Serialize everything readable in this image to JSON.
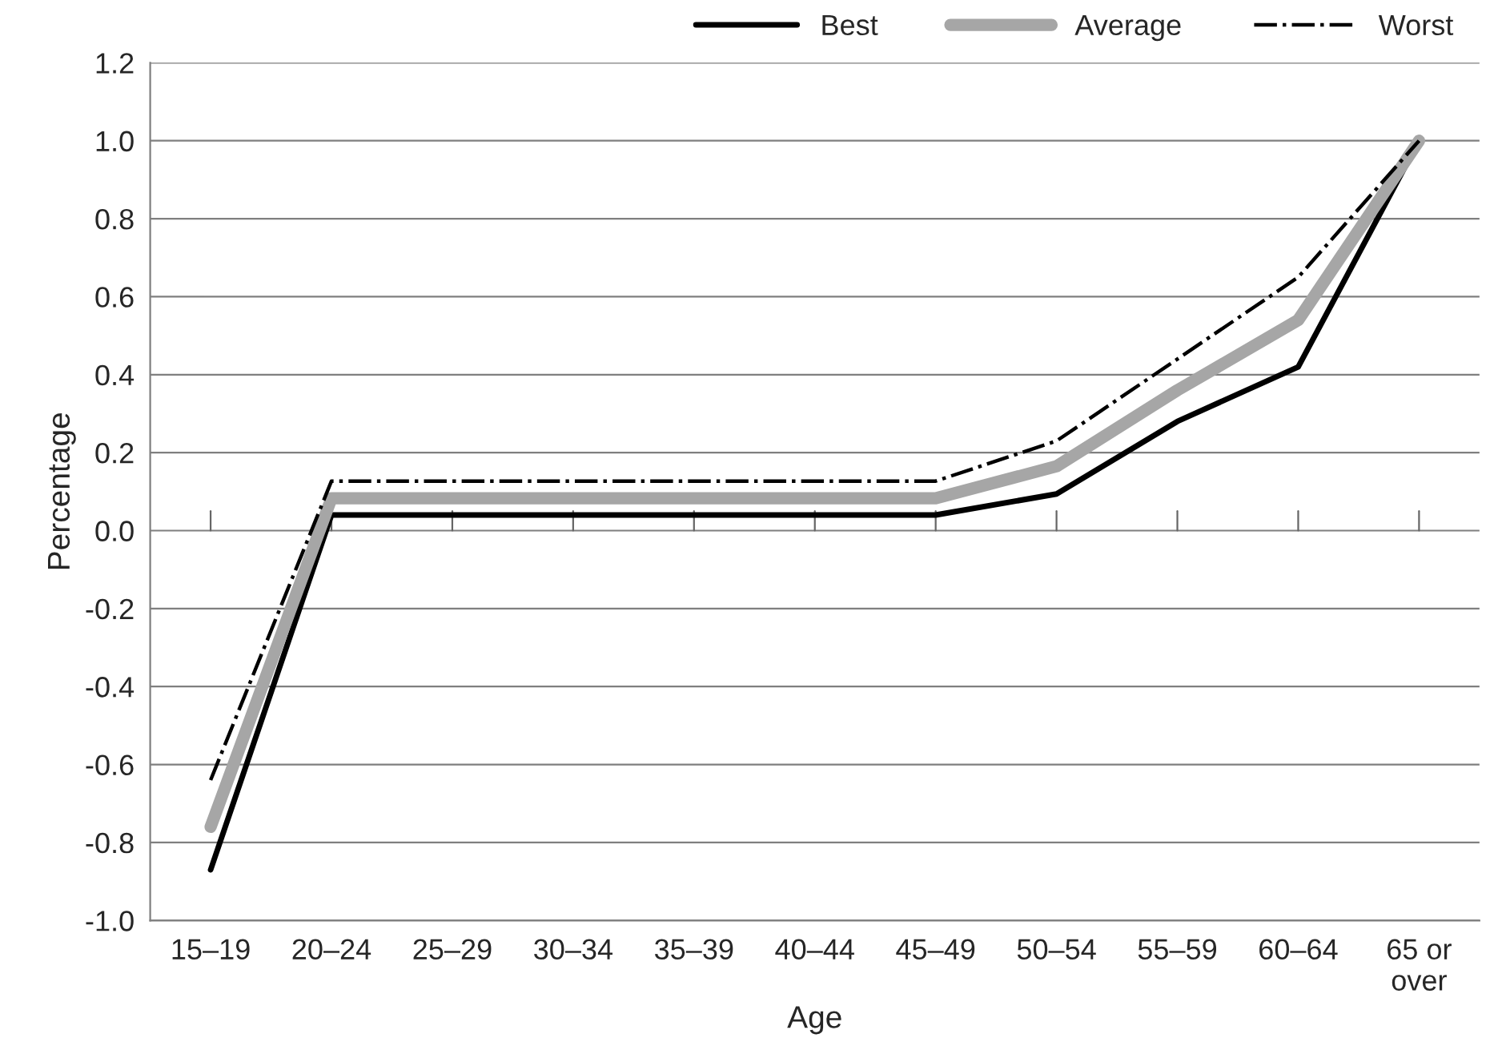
{
  "chart_data": {
    "type": "line",
    "xlabel": "Age",
    "ylabel": "Percentage",
    "categories": [
      "15–19",
      "20–24",
      "25–29",
      "30–34",
      "35–39",
      "40–44",
      "45–49",
      "50–54",
      "55–59",
      "60–64",
      "65 or\nover"
    ],
    "series": [
      {
        "name": "Best",
        "color": "#000000",
        "line_style": "solid",
        "values": [
          -0.87,
          0.04,
          0.04,
          0.04,
          0.04,
          0.04,
          0.04,
          0.094,
          0.28,
          0.42,
          1.0
        ]
      },
      {
        "name": "Average",
        "color": "#a6a6a6",
        "line_style": "solid",
        "values": [
          -0.76,
          0.083,
          0.083,
          0.083,
          0.083,
          0.083,
          0.083,
          0.165,
          0.36,
          0.54,
          1.0
        ]
      },
      {
        "name": "Worst",
        "color": "#000000",
        "line_style": "dashdot",
        "values": [
          -0.64,
          0.127,
          0.127,
          0.127,
          0.127,
          0.127,
          0.127,
          0.23,
          0.44,
          0.65,
          1.0
        ]
      }
    ],
    "ylim": [
      -1.0,
      1.2
    ],
    "yticks": [
      {
        "value": -1.0,
        "label": "-1.0"
      },
      {
        "value": -0.8,
        "label": "-0.8"
      },
      {
        "value": -0.6,
        "label": "-0.6"
      },
      {
        "value": -0.4,
        "label": "-0.4"
      },
      {
        "value": -0.2,
        "label": "-0.2"
      },
      {
        "value": 0.0,
        "label": "0.0"
      },
      {
        "value": 0.2,
        "label": "0.2"
      },
      {
        "value": 0.4,
        "label": "0.4"
      },
      {
        "value": 0.6,
        "label": "0.6"
      },
      {
        "value": 0.8,
        "label": "0.8"
      },
      {
        "value": 1.0,
        "label": "1.0"
      },
      {
        "value": 1.2,
        "label": "1.2"
      }
    ],
    "grid": "y",
    "legend": "top right",
    "marker": "none"
  }
}
